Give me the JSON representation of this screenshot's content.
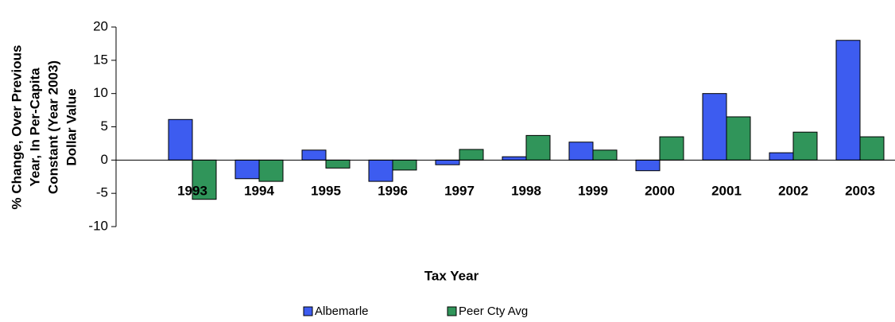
{
  "chart_data": {
    "type": "bar",
    "y_label": [
      "% Change, Over Previous",
      "Year, In Per-Capita",
      "Constant (Year 2003)",
      "Dollar Value"
    ],
    "x_label": "Tax Year",
    "categories": [
      "1993",
      "1994",
      "1995",
      "1996",
      "1997",
      "1998",
      "1999",
      "2000",
      "2001",
      "2002",
      "2003"
    ],
    "series": [
      {
        "name": "Albemarle",
        "color": "#3d5cf0",
        "values": [
          6.1,
          -2.8,
          1.5,
          -3.2,
          -0.7,
          0.5,
          2.7,
          -1.6,
          10,
          1.1,
          18
        ]
      },
      {
        "name": "Peer Cty Avg",
        "color": "#30955a",
        "values": [
          -5.9,
          -3.2,
          -1.2,
          -1.5,
          1.6,
          3.7,
          1.5,
          3.5,
          6.5,
          4.2,
          3.5
        ]
      }
    ],
    "ylim": [
      -10,
      20
    ],
    "yticks": [
      -10,
      -5,
      0,
      5,
      10,
      15,
      20
    ],
    "legend": "bottom"
  }
}
